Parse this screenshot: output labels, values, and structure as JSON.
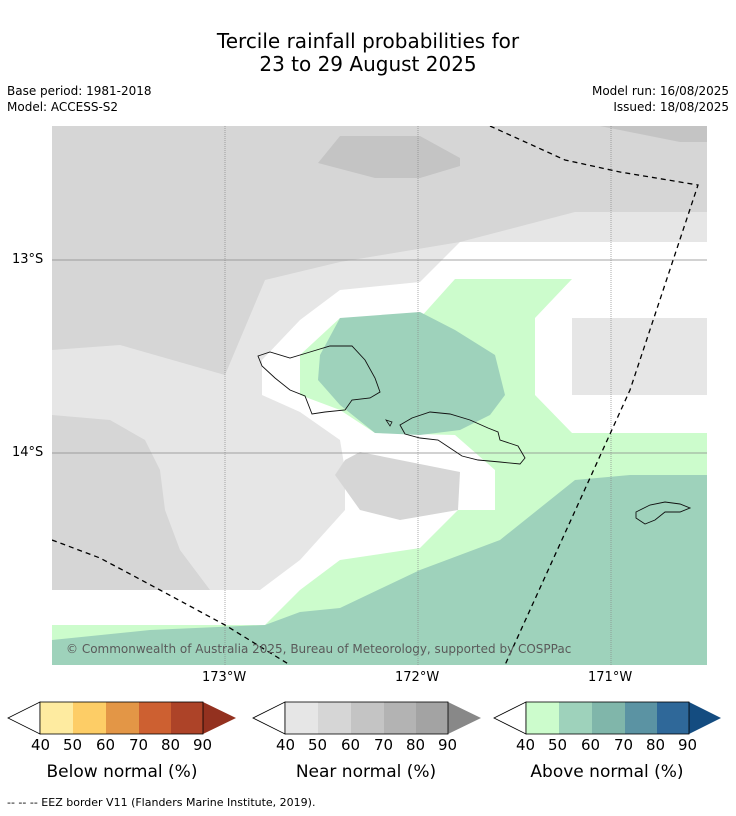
{
  "title_line1": "Tercile rainfall probabilities for",
  "title_line2": "23 to 29 August 2025",
  "meta_left": {
    "base_period": "Base period: 1981-2018",
    "model": "Model: ACCESS-S2"
  },
  "meta_right": {
    "model_run": "Model run: 16/08/2025",
    "issued": "Issued: 18/08/2025"
  },
  "lat_ticks": [
    "13°S",
    "14°S"
  ],
  "lon_ticks": [
    "173°W",
    "172°W",
    "171°W"
  ],
  "copyright": "© Commonwealth of Australia 2025, Bureau of Meteorology, supported by COSPPac",
  "colorbars": {
    "below": {
      "label": "Below normal (%)",
      "ticks": [
        "40",
        "50",
        "60",
        "70",
        "80",
        "90"
      ],
      "colors": [
        "#ffffff",
        "#feeba0",
        "#fdcd66",
        "#e39646",
        "#cd6031",
        "#ad4328",
        "#93311f"
      ]
    },
    "near": {
      "label": "Near normal (%)",
      "ticks": [
        "40",
        "50",
        "60",
        "70",
        "80",
        "90"
      ],
      "colors": [
        "#ffffff",
        "#e6e6e6",
        "#d6d6d6",
        "#c4c4c4",
        "#b3b3b3",
        "#a3a3a3",
        "#888888"
      ]
    },
    "above": {
      "label": "Above normal (%)",
      "ticks": [
        "40",
        "50",
        "60",
        "70",
        "80",
        "90"
      ],
      "colors": [
        "#ffffff",
        "#ccfccc",
        "#9ed2bb",
        "#80b6aa",
        "#5b93a3",
        "#2f6899",
        "#144c80"
      ]
    }
  },
  "footer": "--  --  -- EEZ border V11 (Flanders Marine Institute, 2019)."
}
